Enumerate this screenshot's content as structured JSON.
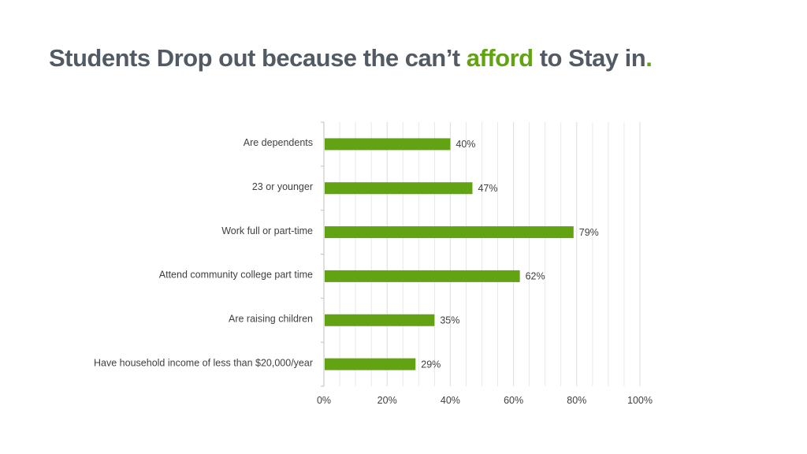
{
  "slide": {
    "title_part1": "Students Drop out because the can’t ",
    "title_accent": "afford",
    "title_part2": " to Stay in",
    "title_period": ".",
    "title_color": "#525b63",
    "accent_color": "#62a313"
  },
  "chart_data": {
    "type": "bar",
    "orientation": "horizontal",
    "categories": [
      "Are dependents",
      "23 or younger",
      "Work full or part-time",
      "Attend community college part time",
      "Are raising children",
      "Have household income of less than $20,000/year"
    ],
    "values": [
      40,
      47,
      79,
      62,
      35,
      29
    ],
    "data_labels": [
      "40%",
      "47%",
      "79%",
      "62%",
      "35%",
      "29%"
    ],
    "xlim": [
      0,
      100
    ],
    "x_ticks": [
      0,
      20,
      40,
      60,
      80,
      100
    ],
    "x_tick_labels": [
      "0%",
      "20%",
      "40%",
      "60%",
      "80%",
      "100%"
    ],
    "grid": true,
    "legend": "none",
    "bar_color": "#62a313",
    "grid_color": "#e3e3e3"
  }
}
